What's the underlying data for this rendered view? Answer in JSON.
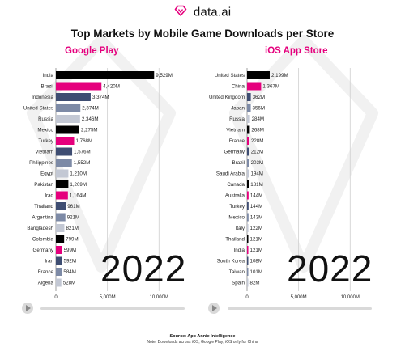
{
  "brand": {
    "name": "data.ai"
  },
  "title": "Top Markets by Mobile Game Downloads per Store",
  "year": "2022",
  "footer": {
    "source": "Source: App Annie Intelligence",
    "note": "Note: Downloads across iOS, Google Play; iOS only for China"
  },
  "colors": {
    "black": "#000000",
    "pink": "#e5007d",
    "navy": "#3e4d72",
    "slate": "#7d8aa6",
    "light": "#c3c8d4"
  },
  "chart_data": [
    {
      "type": "bar",
      "title": "Google Play",
      "orientation": "horizontal",
      "xlim": [
        0,
        11000
      ],
      "xticks": [
        0,
        5000,
        10000
      ],
      "xtick_labels": [
        "0",
        "5,000M",
        "10,000M"
      ],
      "grid": true,
      "categories": [
        "India",
        "Brazil",
        "Indonesia",
        "United States",
        "Russia",
        "Mexico",
        "Turkey",
        "Vietnam",
        "Philippines",
        "Egypt",
        "Pakistan",
        "Iraq",
        "Thailand",
        "Argentina",
        "Bangladesh",
        "Colombia",
        "Germany",
        "Iran",
        "France",
        "Algeria"
      ],
      "values": [
        9529,
        4420,
        3374,
        2374,
        2346,
        2275,
        1768,
        1576,
        1552,
        1210,
        1209,
        1164,
        961,
        921,
        821,
        799,
        599,
        592,
        584,
        528
      ],
      "labels": [
        "9,529M",
        "4,420M",
        "3,374M",
        "2,374M",
        "2,346M",
        "2,275M",
        "1,768M",
        "1,576M",
        "1,552M",
        "1,210M",
        "1,209M",
        "1,164M",
        "961M",
        "921M",
        "821M",
        "799M",
        "599M",
        "592M",
        "584M",
        "528M"
      ],
      "bar_colors": [
        "#000000",
        "#e5007d",
        "#3e4d72",
        "#7d8aa6",
        "#c3c8d4",
        "#000000",
        "#e5007d",
        "#3e4d72",
        "#7d8aa6",
        "#c3c8d4",
        "#000000",
        "#e5007d",
        "#3e4d72",
        "#7d8aa6",
        "#c3c8d4",
        "#000000",
        "#e5007d",
        "#3e4d72",
        "#7d8aa6",
        "#c3c8d4"
      ]
    },
    {
      "type": "bar",
      "title": "iOS App Store",
      "orientation": "horizontal",
      "xlim": [
        0,
        11000
      ],
      "xticks": [
        0,
        5000,
        10000
      ],
      "xtick_labels": [
        "0",
        "5,000M",
        "10,000M"
      ],
      "grid": true,
      "categories": [
        "United States",
        "China",
        "United Kingdom",
        "Japan",
        "Russia",
        "Vietnam",
        "France",
        "Germany",
        "Brazil",
        "Saudi Arabia",
        "Canada",
        "Australia",
        "Turkey",
        "Mexico",
        "Italy",
        "Thailand",
        "India",
        "South Korea",
        "Taiwan",
        "Spain"
      ],
      "values": [
        2199,
        1367,
        362,
        356,
        284,
        268,
        228,
        212,
        203,
        194,
        181,
        144,
        144,
        143,
        122,
        121,
        121,
        108,
        101,
        82
      ],
      "labels": [
        "2,199M",
        "1,367M",
        "362M",
        "356M",
        "284M",
        "268M",
        "228M",
        "212M",
        "203M",
        "194M",
        "181M",
        "144M",
        "144M",
        "143M",
        "122M",
        "121M",
        "121M",
        "108M",
        "101M",
        "82M"
      ],
      "bar_colors": [
        "#000000",
        "#e5007d",
        "#3e4d72",
        "#7d8aa6",
        "#c3c8d4",
        "#000000",
        "#e5007d",
        "#3e4d72",
        "#7d8aa6",
        "#c3c8d4",
        "#000000",
        "#e5007d",
        "#3e4d72",
        "#7d8aa6",
        "#c3c8d4",
        "#000000",
        "#e5007d",
        "#3e4d72",
        "#7d8aa6",
        "#c3c8d4"
      ]
    }
  ]
}
